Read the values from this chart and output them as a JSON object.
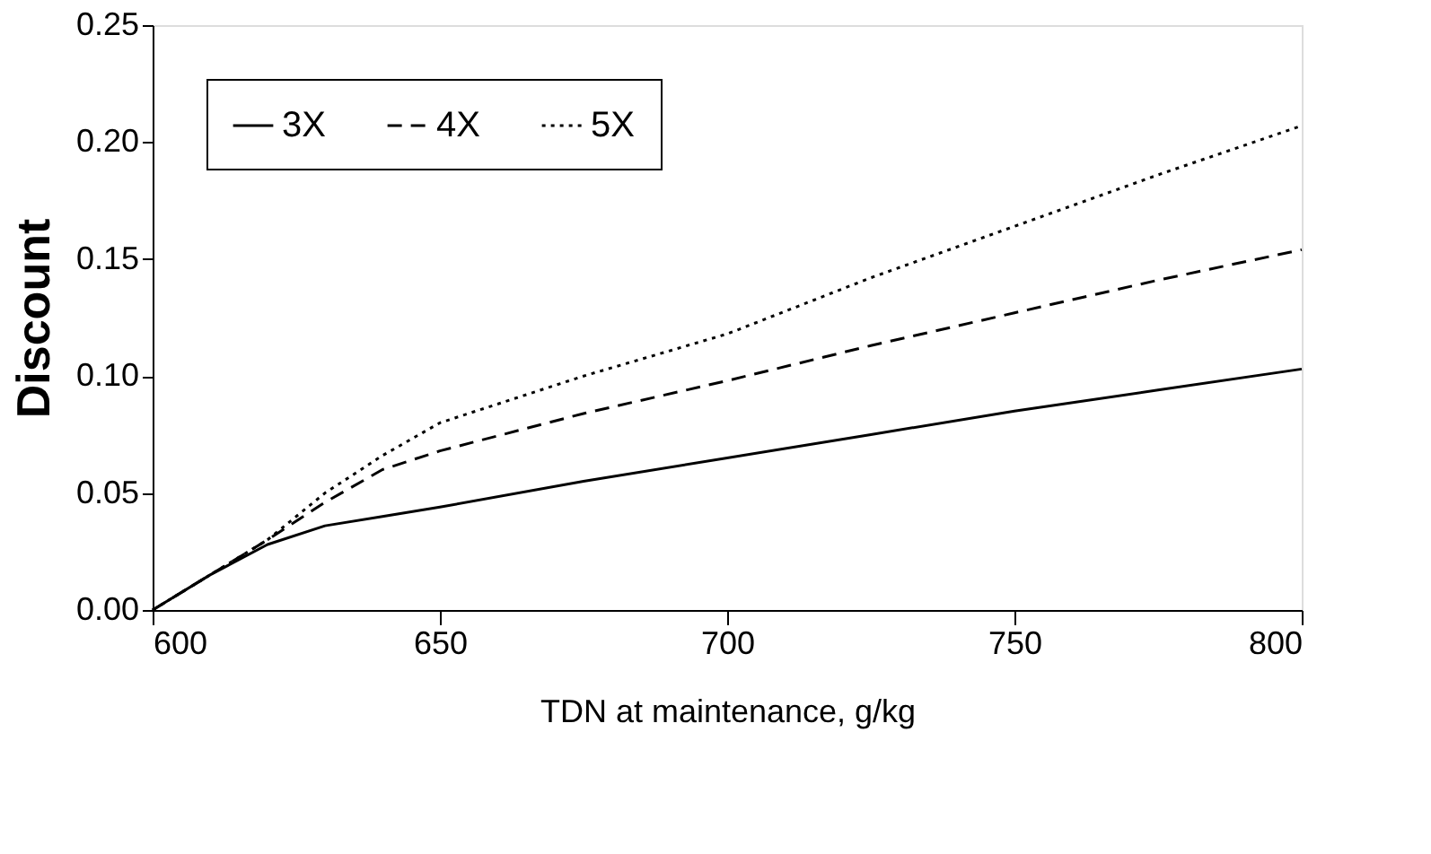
{
  "chart_data": {
    "type": "line",
    "xlabel": "TDN at maintenance, g/kg",
    "ylabel": "Discount",
    "x": [
      600,
      610,
      620,
      630,
      640,
      650,
      675,
      700,
      725,
      750,
      775,
      800
    ],
    "series": [
      {
        "name": "3X",
        "color": "#000000",
        "line_style": "solid",
        "values": [
          0,
          0.015,
          0.028,
          0.036,
          0.04,
          0.044,
          0.055,
          0.065,
          0.075,
          0.085,
          0.094,
          0.103
        ]
      },
      {
        "name": "4X",
        "color": "#000000",
        "line_style": "dashed",
        "values": [
          0,
          0.015,
          0.03,
          0.046,
          0.06,
          0.068,
          0.084,
          0.098,
          0.113,
          0.127,
          0.141,
          0.154
        ]
      },
      {
        "name": "5X",
        "color": "#000000",
        "line_style": "dotted",
        "values": [
          0,
          0.015,
          0.03,
          0.05,
          0.066,
          0.08,
          0.1,
          0.118,
          0.142,
          0.164,
          0.186,
          0.207
        ]
      }
    ],
    "xlim": [
      600,
      800
    ],
    "xticks": [
      600,
      650,
      700,
      750,
      800
    ],
    "ylim": [
      0,
      0.25
    ],
    "yticks": [
      {
        "value": 0,
        "label": "0.00"
      },
      {
        "value": 0.05,
        "label": "0.05"
      },
      {
        "value": 0.1,
        "label": "0.10"
      },
      {
        "value": 0.15,
        "label": "0.15"
      },
      {
        "value": 0.2,
        "label": "0.20"
      },
      {
        "value": 0.25,
        "label": "0.25"
      }
    ],
    "grid": false,
    "legend": "top left",
    "marker": "none"
  }
}
